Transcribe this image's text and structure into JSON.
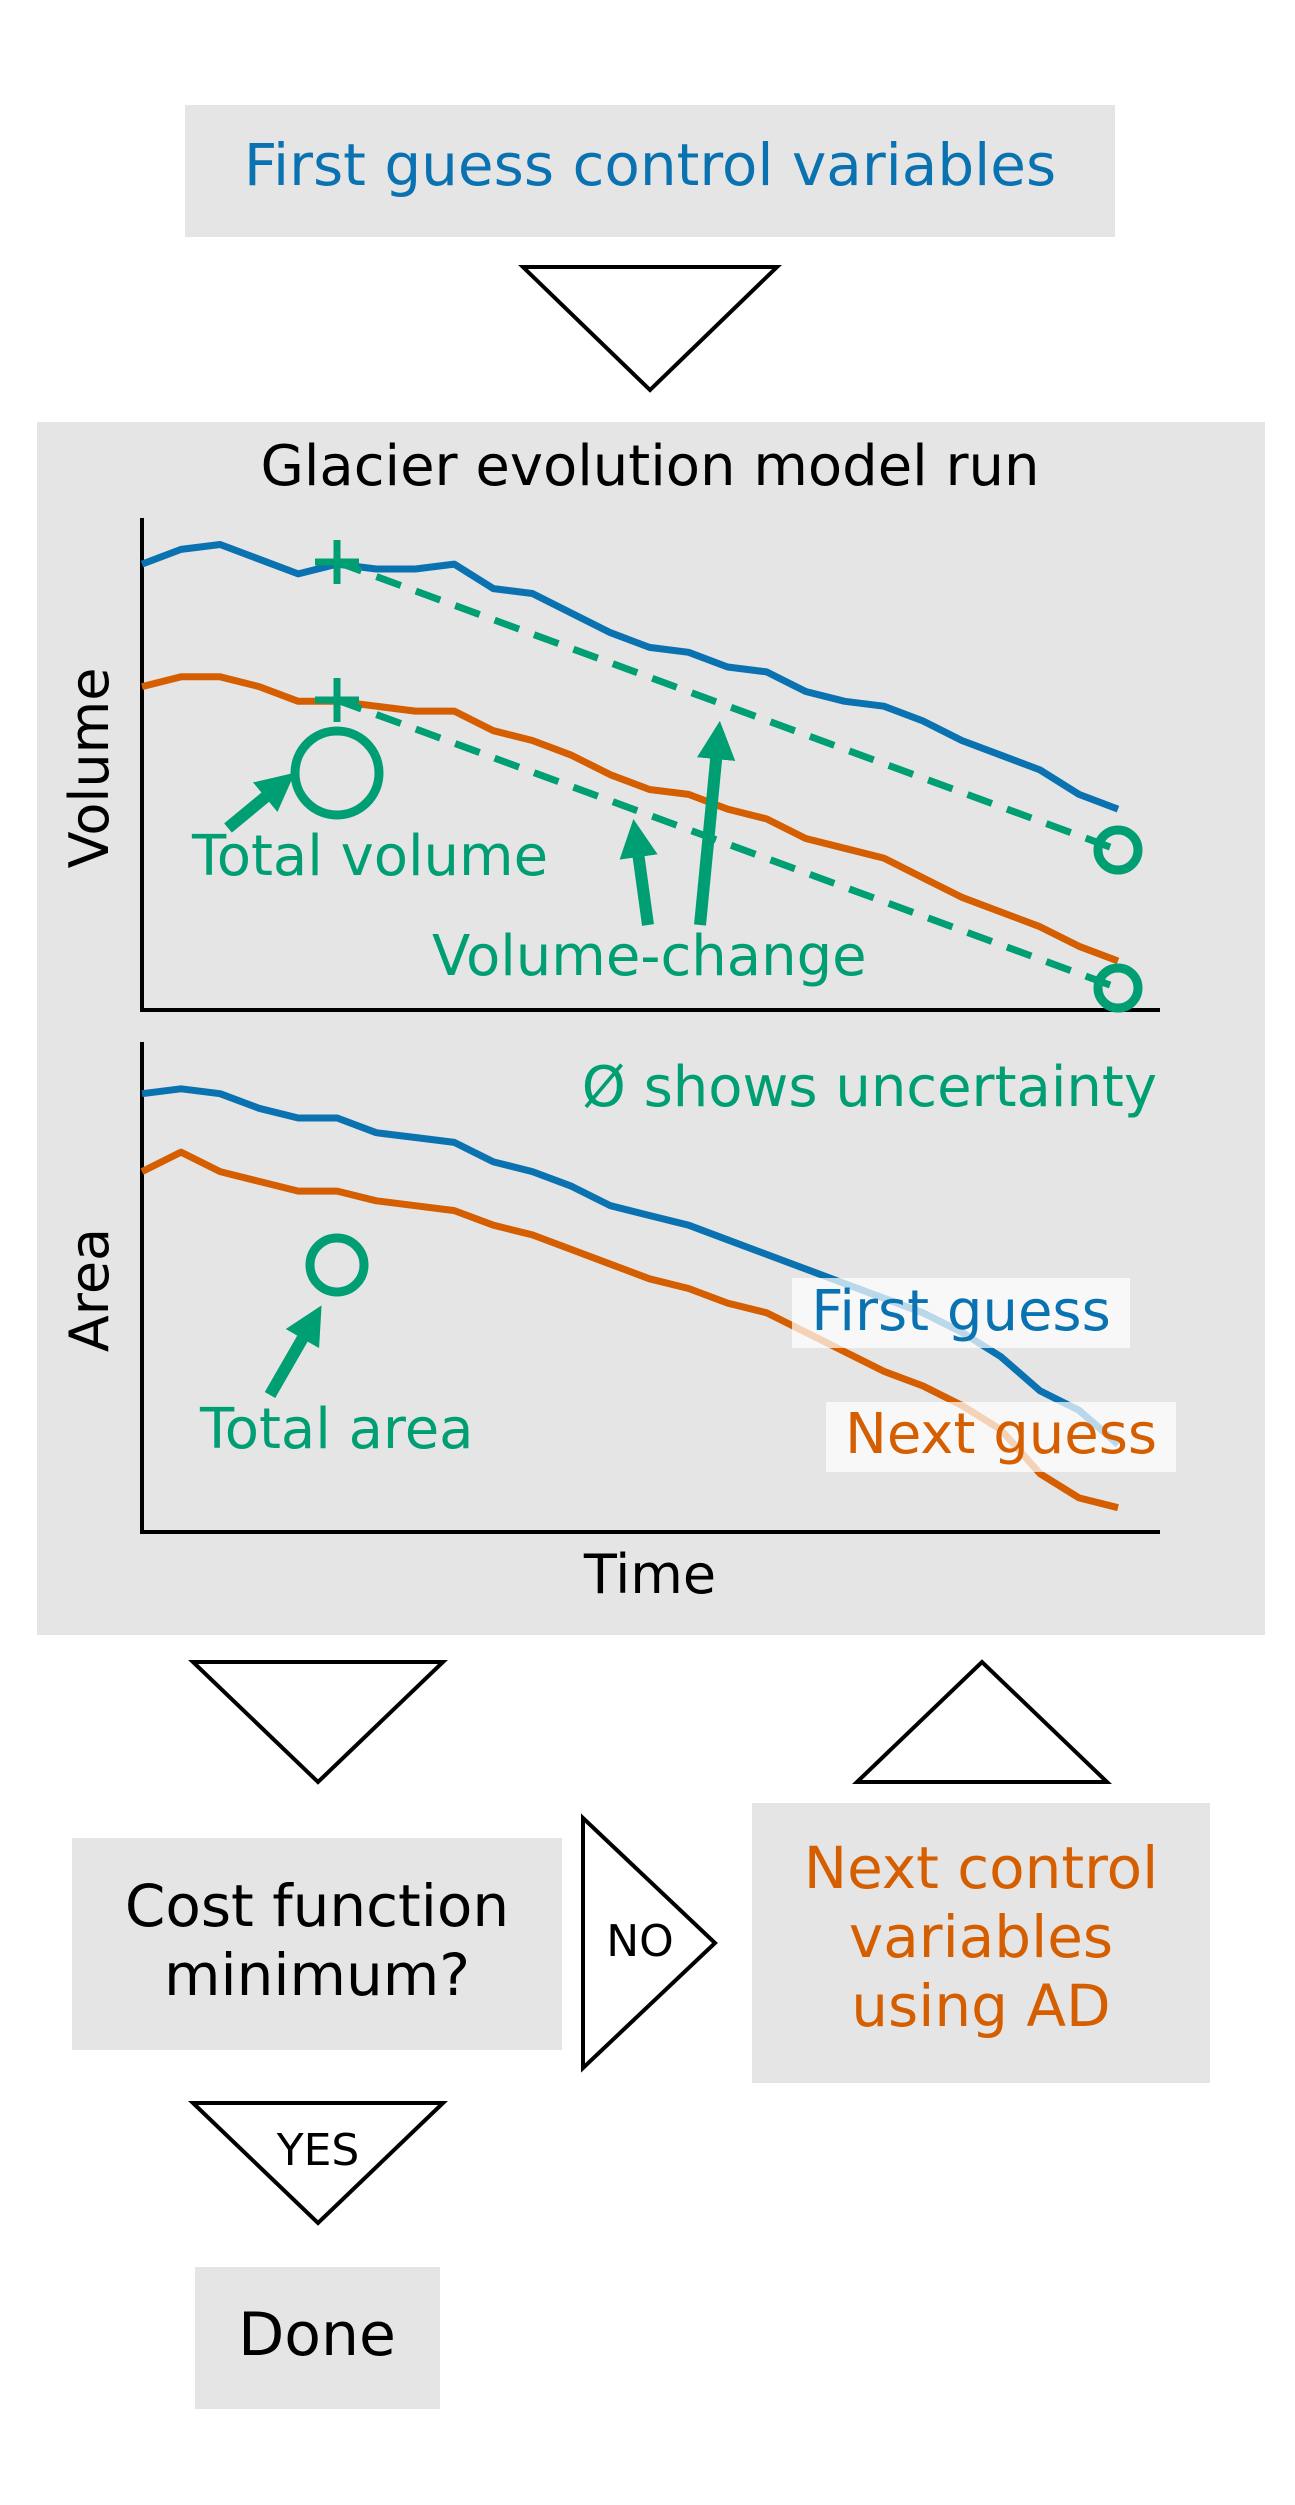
{
  "colors": {
    "blue": "#0a72b0",
    "orange": "#d55e00",
    "green": "#009e73",
    "panel_gray": "#e5e5e5",
    "black": "#000000"
  },
  "start_box": {
    "text": "First guess control variables"
  },
  "model_run": {
    "title": "Glacier evolution model run",
    "volume_ylabel": "Volume",
    "area_ylabel": "Area",
    "xlabel": "Time",
    "annotations": {
      "total_volume": "Total volume",
      "volume_change": "Volume-change",
      "uncertainty_note": "Ø shows uncertainty",
      "total_area": "Total area",
      "first_guess": "First guess",
      "next_guess": "Next guess"
    }
  },
  "cost_box": {
    "line1": "Cost function",
    "line2": "minimum?"
  },
  "no_label": "NO",
  "yes_label": "YES",
  "next_box": {
    "line1": "Next control",
    "line2": "variables",
    "line3": "using AD"
  },
  "done_box": {
    "text": "Done"
  },
  "chart_data": [
    {
      "type": "line",
      "ylabel": "Volume",
      "xlabel": "",
      "x": [
        0,
        1,
        2,
        3,
        4,
        5,
        6,
        7,
        8,
        9,
        10,
        11,
        12,
        13,
        14,
        15,
        16,
        17,
        18,
        19,
        20,
        21,
        22,
        23,
        24,
        25
      ],
      "series": [
        {
          "name": "First guess",
          "color": "#0a72b0",
          "values": [
            0.91,
            0.94,
            0.95,
            0.92,
            0.89,
            0.91,
            0.9,
            0.9,
            0.91,
            0.86,
            0.85,
            0.81,
            0.77,
            0.74,
            0.73,
            0.7,
            0.69,
            0.65,
            0.63,
            0.62,
            0.59,
            0.55,
            0.52,
            0.49,
            0.44,
            0.41
          ]
        },
        {
          "name": "Next guess",
          "color": "#d55e00",
          "values": [
            0.66,
            0.68,
            0.68,
            0.66,
            0.63,
            0.63,
            0.62,
            0.61,
            0.61,
            0.57,
            0.55,
            0.52,
            0.48,
            0.45,
            0.44,
            0.41,
            0.39,
            0.35,
            0.33,
            0.31,
            0.27,
            0.23,
            0.2,
            0.17,
            0.13,
            0.1
          ]
        }
      ]
    },
    {
      "type": "line",
      "ylabel": "Area",
      "xlabel": "Time",
      "x": [
        0,
        1,
        2,
        3,
        4,
        5,
        6,
        7,
        8,
        9,
        10,
        11,
        12,
        13,
        14,
        15,
        16,
        17,
        18,
        19,
        20,
        21,
        22,
        23,
        24,
        25
      ],
      "series": [
        {
          "name": "First guess",
          "color": "#0a72b0",
          "values": [
            0.9,
            0.91,
            0.9,
            0.87,
            0.85,
            0.85,
            0.82,
            0.81,
            0.8,
            0.76,
            0.74,
            0.71,
            0.67,
            0.65,
            0.63,
            0.6,
            0.57,
            0.54,
            0.51,
            0.48,
            0.45,
            0.41,
            0.36,
            0.29,
            0.25,
            0.18
          ]
        },
        {
          "name": "Next guess",
          "color": "#d55e00",
          "values": [
            0.74,
            0.78,
            0.74,
            0.72,
            0.7,
            0.7,
            0.68,
            0.67,
            0.66,
            0.63,
            0.61,
            0.58,
            0.55,
            0.52,
            0.5,
            0.47,
            0.45,
            0.41,
            0.37,
            0.33,
            0.3,
            0.26,
            0.21,
            0.12,
            0.07,
            0.05
          ]
        }
      ]
    }
  ]
}
